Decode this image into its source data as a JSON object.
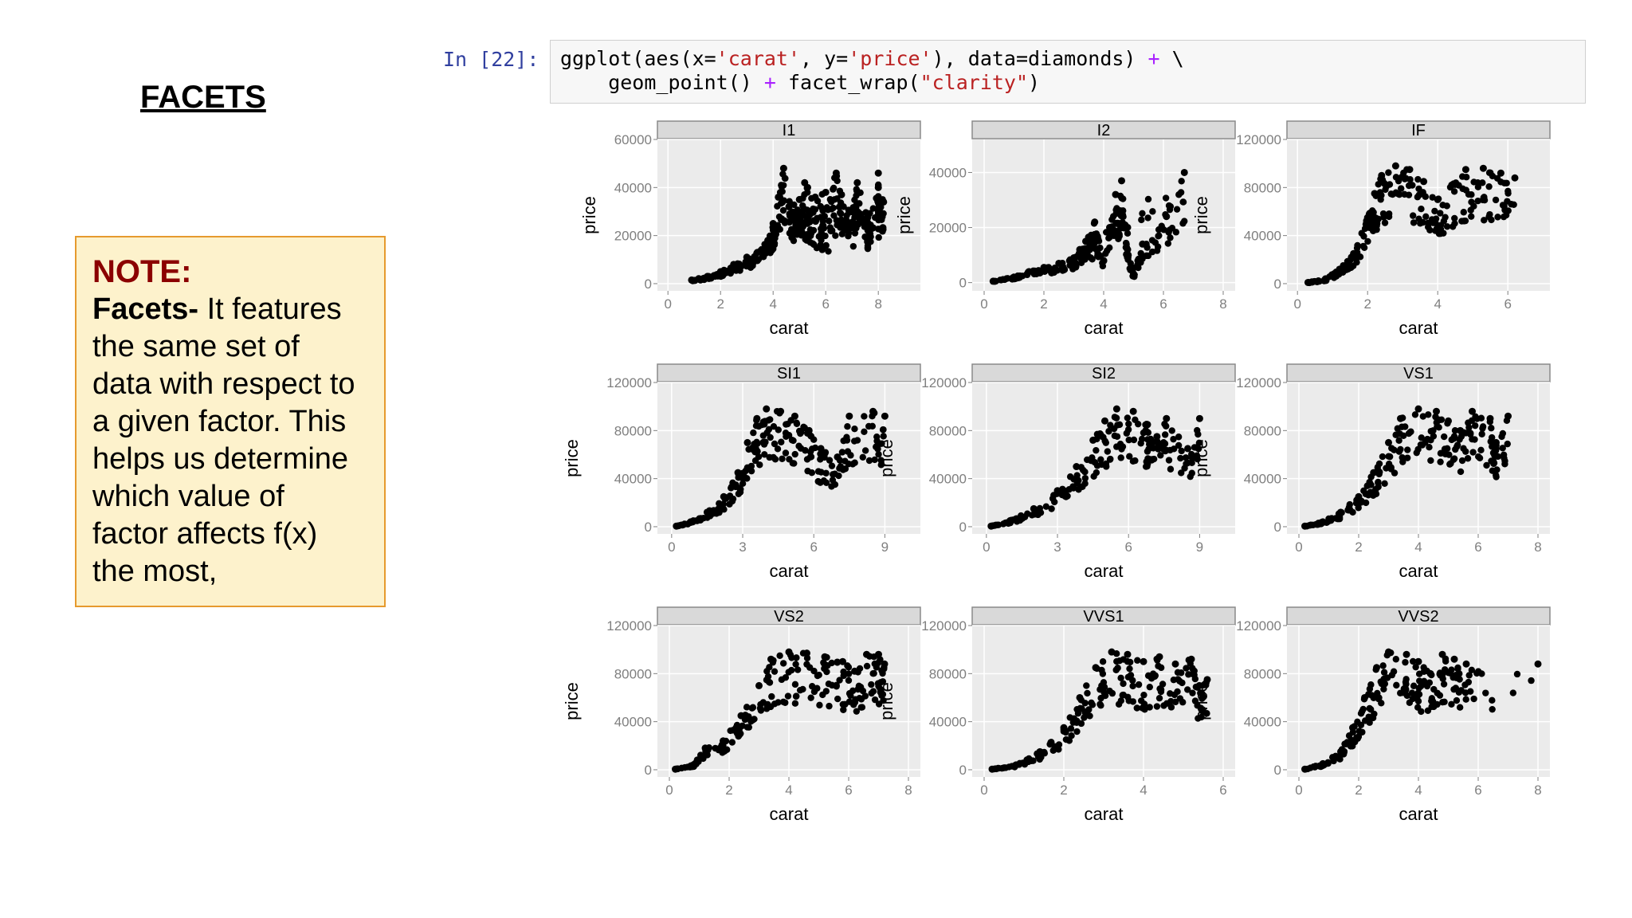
{
  "slide": {
    "heading": "FACETS",
    "note": {
      "title": "NOTE:",
      "term": "Facets-",
      "lines": [
        " It features",
        "the same set of",
        "data with respect to",
        "a given factor. This",
        "helps us determine",
        "which value of",
        "factor affects f(x)",
        "the most,"
      ]
    }
  },
  "notebook": {
    "prompt": "In [22]:",
    "code_line1": {
      "fn": "ggplot(aes(x=",
      "s1": "'carat'",
      "mid": ", y=",
      "s2": "'price'",
      "tail": "), data=diamonds) ",
      "plus": "+",
      "cont": " \\"
    },
    "code_line2": {
      "indent": "    geom_point() ",
      "plus": "+",
      "fn": " facet_wrap(",
      "s": "\"clarity\"",
      "close": ")"
    }
  },
  "colors": {
    "panel_bg": "#ebebeb",
    "grid": "#ffffff",
    "strip_bg": "#d9d9d9",
    "point": "#000000",
    "note_bg": "#fdf2cc",
    "note_border": "#e69a2e",
    "note_title": "#8b0000"
  },
  "chart_data": [
    {
      "type": "scatter",
      "facet": "I1",
      "xlabel": "carat",
      "ylabel": "price",
      "xticks": [
        0,
        2,
        4,
        6,
        8
      ],
      "yticks": [
        0,
        20000,
        40000,
        60000
      ],
      "xlim": [
        -0.4,
        9.6
      ],
      "ylim": [
        -3000,
        60000
      ],
      "points": [
        [
          0.9,
          1500
        ],
        [
          1.5,
          3000
        ],
        [
          2.0,
          5000
        ],
        [
          2.5,
          8000
        ],
        [
          3.0,
          11000
        ],
        [
          3.4,
          13000
        ],
        [
          3.8,
          18000
        ],
        [
          4.0,
          25000
        ],
        [
          4.2,
          36000
        ],
        [
          4.4,
          48000
        ],
        [
          4.8,
          28000
        ],
        [
          5.2,
          42000
        ],
        [
          5.6,
          36000
        ],
        [
          6.0,
          38000
        ],
        [
          6.4,
          46000
        ],
        [
          6.6,
          37000
        ],
        [
          7.0,
          30000
        ],
        [
          7.2,
          42000
        ],
        [
          7.6,
          28000
        ],
        [
          7.6,
          24000
        ],
        [
          8.0,
          46000
        ],
        [
          8.0,
          40000
        ],
        [
          8.2,
          34000
        ],
        [
          6.8,
          26000
        ],
        [
          5.4,
          30000
        ],
        [
          5.0,
          35000
        ],
        [
          4.6,
          32000
        ],
        [
          6.2,
          22000
        ]
      ]
    },
    {
      "type": "scatter",
      "facet": "I2",
      "xlabel": "carat",
      "ylabel": "price",
      "xticks": [
        0,
        2,
        4,
        6,
        8
      ],
      "yticks": [
        0,
        20000,
        40000
      ],
      "xlim": [
        -0.4,
        8.4
      ],
      "ylim": [
        -3000,
        52000
      ],
      "points": [
        [
          0.3,
          500
        ],
        [
          1.0,
          2000
        ],
        [
          1.5,
          4000
        ],
        [
          2.0,
          5500
        ],
        [
          2.5,
          7000
        ],
        [
          3.0,
          9000
        ],
        [
          3.4,
          15000
        ],
        [
          3.7,
          22000
        ],
        [
          4.0,
          8000
        ],
        [
          4.4,
          32000
        ],
        [
          4.5,
          26000
        ],
        [
          4.6,
          37000
        ],
        [
          4.8,
          12000
        ],
        [
          5.0,
          3000
        ],
        [
          5.3,
          14000
        ],
        [
          6.1,
          24000
        ],
        [
          6.7,
          40000
        ],
        [
          4.2,
          20000
        ],
        [
          3.2,
          12000
        ]
      ]
    },
    {
      "type": "scatter",
      "facet": "IF",
      "xlabel": "carat",
      "ylabel": "price",
      "xticks": [
        0,
        2,
        4,
        6
      ],
      "yticks": [
        0,
        40000,
        80000,
        120000
      ],
      "xlim": [
        -0.3,
        7.2
      ],
      "ylim": [
        -6000,
        120000
      ],
      "points": [
        [
          0.3,
          1000
        ],
        [
          0.8,
          4000
        ],
        [
          1.2,
          12000
        ],
        [
          1.6,
          25000
        ],
        [
          2.0,
          55000
        ],
        [
          2.2,
          75000
        ],
        [
          2.4,
          90000
        ],
        [
          2.8,
          98000
        ],
        [
          3.2,
          95000
        ],
        [
          3.6,
          85000
        ],
        [
          4.0,
          70000
        ],
        [
          4.4,
          82000
        ],
        [
          4.8,
          95000
        ],
        [
          5.3,
          96000
        ],
        [
          5.8,
          92000
        ],
        [
          6.2,
          88000
        ]
      ]
    },
    {
      "type": "scatter",
      "facet": "SI1",
      "xlabel": "carat",
      "ylabel": "price",
      "xticks": [
        0,
        3,
        6,
        9
      ],
      "yticks": [
        0,
        40000,
        80000,
        120000
      ],
      "xlim": [
        -0.6,
        10.5
      ],
      "ylim": [
        -6000,
        120000
      ],
      "points": [
        [
          0.2,
          500
        ],
        [
          0.8,
          4000
        ],
        [
          1.5,
          12000
        ],
        [
          2.2,
          25000
        ],
        [
          2.8,
          45000
        ],
        [
          3.2,
          70000
        ],
        [
          3.6,
          90000
        ],
        [
          4.0,
          98000
        ],
        [
          4.6,
          96000
        ],
        [
          5.2,
          92000
        ],
        [
          5.8,
          80000
        ],
        [
          6.3,
          65000
        ],
        [
          7.0,
          58000
        ],
        [
          7.5,
          92000
        ],
        [
          8.5,
          96000
        ],
        [
          9.0,
          92000
        ]
      ]
    },
    {
      "type": "scatter",
      "facet": "SI2",
      "xlabel": "carat",
      "ylabel": "price",
      "xticks": [
        0,
        3,
        6,
        9
      ],
      "yticks": [
        0,
        40000,
        80000,
        120000
      ],
      "xlim": [
        -0.6,
        10.5
      ],
      "ylim": [
        -6000,
        120000
      ],
      "points": [
        [
          0.2,
          500
        ],
        [
          1.0,
          5000
        ],
        [
          2.0,
          15000
        ],
        [
          3.0,
          30000
        ],
        [
          3.8,
          50000
        ],
        [
          4.5,
          72000
        ],
        [
          5.0,
          88000
        ],
        [
          5.5,
          98000
        ],
        [
          6.2,
          96000
        ],
        [
          6.8,
          85000
        ],
        [
          7.2,
          75000
        ],
        [
          7.6,
          90000
        ],
        [
          8.5,
          65000
        ],
        [
          9.0,
          90000
        ]
      ]
    },
    {
      "type": "scatter",
      "facet": "VS1",
      "xlabel": "carat",
      "ylabel": "price",
      "xticks": [
        0,
        2,
        4,
        6,
        8
      ],
      "yticks": [
        0,
        40000,
        80000,
        120000
      ],
      "xlim": [
        -0.4,
        8.4
      ],
      "ylim": [
        -6000,
        120000
      ],
      "points": [
        [
          0.2,
          500
        ],
        [
          0.8,
          4000
        ],
        [
          1.4,
          12000
        ],
        [
          2.0,
          25000
        ],
        [
          2.5,
          45000
        ],
        [
          3.0,
          70000
        ],
        [
          3.4,
          90000
        ],
        [
          4.0,
          98000
        ],
        [
          4.6,
          96000
        ],
        [
          5.0,
          88000
        ],
        [
          5.4,
          80000
        ],
        [
          5.8,
          96000
        ],
        [
          6.4,
          90000
        ],
        [
          6.6,
          70000
        ],
        [
          7.0,
          92000
        ]
      ]
    },
    {
      "type": "scatter",
      "facet": "VS2",
      "xlabel": "carat",
      "ylabel": "price",
      "xticks": [
        0,
        2,
        4,
        6,
        8
      ],
      "yticks": [
        0,
        40000,
        80000,
        120000
      ],
      "xlim": [
        -0.4,
        8.4
      ],
      "ylim": [
        -6000,
        120000
      ],
      "points": [
        [
          0.2,
          500
        ],
        [
          0.8,
          4000
        ],
        [
          1.2,
          18000
        ],
        [
          1.8,
          24000
        ],
        [
          2.4,
          45000
        ],
        [
          3.0,
          70000
        ],
        [
          3.4,
          92000
        ],
        [
          4.0,
          98000
        ],
        [
          4.6,
          97000
        ],
        [
          5.2,
          94000
        ],
        [
          5.8,
          90000
        ],
        [
          6.2,
          82000
        ],
        [
          6.6,
          96000
        ],
        [
          7.0,
          96000
        ],
        [
          7.2,
          88000
        ]
      ]
    },
    {
      "type": "scatter",
      "facet": "VVS1",
      "xlabel": "carat",
      "ylabel": "price",
      "xticks": [
        0,
        2,
        4,
        6
      ],
      "yticks": [
        0,
        40000,
        80000,
        120000
      ],
      "xlim": [
        -0.3,
        6.3
      ],
      "ylim": [
        -6000,
        120000
      ],
      "points": [
        [
          0.2,
          500
        ],
        [
          0.8,
          4000
        ],
        [
          1.4,
          15000
        ],
        [
          2.0,
          35000
        ],
        [
          2.4,
          60000
        ],
        [
          2.8,
          85000
        ],
        [
          3.2,
          98000
        ],
        [
          3.6,
          96000
        ],
        [
          4.0,
          90000
        ],
        [
          4.4,
          94000
        ],
        [
          4.8,
          88000
        ],
        [
          5.2,
          92000
        ],
        [
          5.4,
          70000
        ],
        [
          5.6,
          75000
        ]
      ]
    },
    {
      "type": "scatter",
      "facet": "VVS2",
      "xlabel": "carat",
      "ylabel": "price",
      "xticks": [
        0,
        2,
        4,
        6,
        8
      ],
      "yticks": [
        0,
        40000,
        80000,
        120000
      ],
      "xlim": [
        -0.4,
        8.4
      ],
      "ylim": [
        -6000,
        120000
      ],
      "points": [
        [
          0.2,
          500
        ],
        [
          0.8,
          5000
        ],
        [
          1.4,
          15000
        ],
        [
          1.8,
          35000
        ],
        [
          2.2,
          60000
        ],
        [
          2.6,
          85000
        ],
        [
          3.0,
          98000
        ],
        [
          3.6,
          96000
        ],
        [
          4.0,
          90000
        ],
        [
          4.4,
          80000
        ],
        [
          4.8,
          96000
        ],
        [
          5.2,
          92000
        ],
        [
          5.6,
          88000
        ],
        [
          8.0,
          88000
        ]
      ]
    }
  ]
}
